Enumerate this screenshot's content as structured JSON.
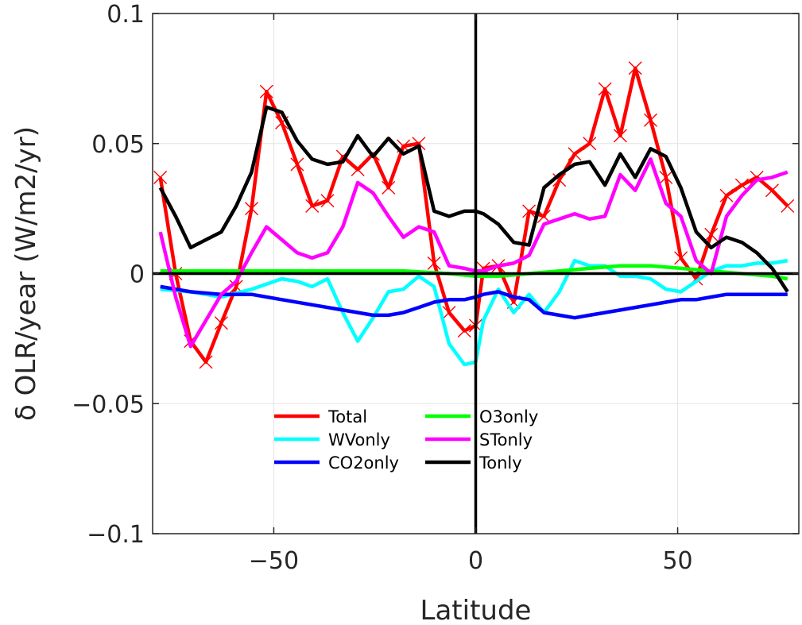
{
  "chart_data": {
    "type": "line",
    "title": "",
    "xlabel": "Latitude",
    "ylabel": "δ OLR/year (W/m2/yr)",
    "xlim": [
      -80,
      80
    ],
    "ylim": [
      -0.1,
      0.1
    ],
    "xticks": [
      -50,
      0,
      50
    ],
    "xtick_labels": [
      "−50",
      "0",
      "50"
    ],
    "yticks": [
      -0.1,
      -0.05,
      0,
      0.05,
      0.1
    ],
    "ytick_labels": [
      "−0.1",
      "−0.05",
      "0",
      "0.05",
      "0.1"
    ],
    "grid": true,
    "zero_lines": true,
    "legend_position": "lower-center",
    "series": [
      {
        "name": "Total",
        "color": "#ff0000",
        "marker": "x",
        "x": [
          -78.1,
          -74.3,
          -70.6,
          -66.8,
          -63.0,
          -59.3,
          -55.5,
          -51.8,
          -48.0,
          -44.2,
          -40.5,
          -36.7,
          -32.9,
          -29.2,
          -25.4,
          -21.6,
          -17.9,
          -14.1,
          -10.3,
          -6.6,
          -2.8,
          0.0,
          1.9,
          5.6,
          9.4,
          13.2,
          16.9,
          20.7,
          24.5,
          28.2,
          32.0,
          35.8,
          39.5,
          43.3,
          47.1,
          50.8,
          54.6,
          58.3,
          62.1,
          65.9,
          69.6,
          73.4,
          77.2
        ],
        "y": [
          0.037,
          0.0,
          -0.026,
          -0.034,
          -0.019,
          -0.005,
          0.025,
          0.07,
          0.058,
          0.042,
          0.026,
          0.028,
          0.045,
          0.04,
          0.046,
          0.033,
          0.049,
          0.05,
          0.004,
          -0.015,
          -0.022,
          -0.02,
          0.002,
          0.003,
          -0.011,
          0.024,
          0.022,
          0.036,
          0.046,
          0.05,
          0.071,
          0.053,
          0.079,
          0.059,
          0.037,
          0.006,
          -0.002,
          0.015,
          0.03,
          0.034,
          0.037,
          0.032,
          0.026
        ]
      },
      {
        "name": "WVonly",
        "color": "#00ffff",
        "marker": "",
        "x": [
          -78.1,
          -70.6,
          -63.0,
          -55.5,
          -48.0,
          -44.2,
          -40.5,
          -36.7,
          -32.9,
          -29.2,
          -25.4,
          -21.6,
          -17.9,
          -14.1,
          -10.3,
          -6.6,
          -2.8,
          0.0,
          1.9,
          5.6,
          9.4,
          13.2,
          16.9,
          20.7,
          24.5,
          28.2,
          32.0,
          35.8,
          39.5,
          43.3,
          47.1,
          50.8,
          54.6,
          58.3,
          62.1,
          65.9,
          69.6,
          73.4,
          77.2
        ],
        "y": [
          -0.006,
          -0.007,
          -0.009,
          -0.006,
          -0.002,
          -0.003,
          -0.005,
          -0.002,
          -0.015,
          -0.026,
          -0.017,
          -0.007,
          -0.006,
          -0.001,
          -0.005,
          -0.027,
          -0.035,
          -0.034,
          -0.018,
          -0.006,
          -0.015,
          -0.008,
          -0.015,
          -0.007,
          0.005,
          0.003,
          0.003,
          -0.001,
          -0.001,
          -0.002,
          -0.006,
          -0.007,
          -0.003,
          0.001,
          0.003,
          0.003,
          0.004,
          0.004,
          0.005
        ]
      },
      {
        "name": "CO2only",
        "color": "#0000ff",
        "marker": "",
        "x": [
          -78.1,
          -70.6,
          -63.0,
          -55.5,
          -48.0,
          -40.5,
          -32.9,
          -25.4,
          -21.6,
          -17.9,
          -14.1,
          -10.3,
          -6.6,
          -2.8,
          0.0,
          1.9,
          5.6,
          9.4,
          13.2,
          16.9,
          20.7,
          24.5,
          28.2,
          32.0,
          35.8,
          39.5,
          43.3,
          47.1,
          50.8,
          54.6,
          58.3,
          62.1,
          65.9,
          69.6,
          73.4,
          77.2
        ],
        "y": [
          -0.005,
          -0.007,
          -0.008,
          -0.008,
          -0.01,
          -0.012,
          -0.014,
          -0.016,
          -0.016,
          -0.015,
          -0.013,
          -0.011,
          -0.01,
          -0.01,
          -0.009,
          -0.008,
          -0.007,
          -0.009,
          -0.01,
          -0.015,
          -0.016,
          -0.017,
          -0.016,
          -0.015,
          -0.014,
          -0.013,
          -0.012,
          -0.011,
          -0.01,
          -0.01,
          -0.009,
          -0.008,
          -0.008,
          -0.008,
          -0.008,
          -0.008
        ]
      },
      {
        "name": "O3only",
        "color": "#00ff00",
        "marker": "",
        "x": [
          -78.1,
          -63.0,
          -48.0,
          -32.9,
          -17.9,
          -6.6,
          0.0,
          5.6,
          13.2,
          20.7,
          28.2,
          35.8,
          43.3,
          50.8,
          58.3,
          65.9,
          73.4,
          77.2
        ],
        "y": [
          0.001,
          0.001,
          0.001,
          0.001,
          0.001,
          0.0,
          -0.001,
          -0.001,
          0.0,
          0.001,
          0.002,
          0.003,
          0.003,
          0.002,
          0.001,
          0.0,
          -0.001,
          -0.002
        ]
      },
      {
        "name": "STonly",
        "color": "#ff00ff",
        "marker": "",
        "x": [
          -78.1,
          -74.3,
          -70.6,
          -66.8,
          -63.0,
          -59.3,
          -55.5,
          -51.8,
          -48.0,
          -44.2,
          -40.5,
          -36.7,
          -32.9,
          -29.2,
          -25.4,
          -21.6,
          -17.9,
          -14.1,
          -10.3,
          -6.6,
          -2.8,
          0.0,
          1.9,
          5.6,
          9.4,
          13.2,
          16.9,
          20.7,
          24.5,
          28.2,
          32.0,
          35.8,
          39.5,
          43.3,
          47.1,
          50.8,
          54.6,
          58.3,
          62.1,
          65.9,
          69.6,
          73.4,
          77.2
        ],
        "y": [
          0.016,
          -0.009,
          -0.028,
          -0.018,
          -0.008,
          -0.003,
          0.008,
          0.018,
          0.013,
          0.008,
          0.006,
          0.008,
          0.018,
          0.035,
          0.031,
          0.022,
          0.014,
          0.018,
          0.016,
          0.003,
          0.002,
          0.001,
          0.001,
          0.003,
          0.004,
          0.007,
          0.019,
          0.021,
          0.023,
          0.021,
          0.022,
          0.038,
          0.032,
          0.044,
          0.027,
          0.022,
          0.005,
          0.0,
          0.022,
          0.03,
          0.036,
          0.037,
          0.039
        ]
      },
      {
        "name": "Tonly",
        "color": "#000000",
        "marker": "",
        "x": [
          -78.1,
          -74.3,
          -70.6,
          -66.8,
          -63.0,
          -59.3,
          -55.5,
          -51.8,
          -48.0,
          -44.2,
          -40.5,
          -36.7,
          -32.9,
          -29.2,
          -25.4,
          -21.6,
          -17.9,
          -14.1,
          -10.3,
          -6.6,
          -2.8,
          0.0,
          1.9,
          5.6,
          9.4,
          13.2,
          16.9,
          20.7,
          24.5,
          28.2,
          32.0,
          35.8,
          39.5,
          43.3,
          47.1,
          50.8,
          54.6,
          58.3,
          62.1,
          65.9,
          69.6,
          73.4,
          77.2
        ],
        "y": [
          0.033,
          0.022,
          0.01,
          0.013,
          0.016,
          0.026,
          0.039,
          0.064,
          0.062,
          0.051,
          0.044,
          0.042,
          0.043,
          0.053,
          0.045,
          0.052,
          0.046,
          0.049,
          0.024,
          0.022,
          0.024,
          0.024,
          0.023,
          0.019,
          0.012,
          0.011,
          0.033,
          0.038,
          0.042,
          0.043,
          0.034,
          0.046,
          0.037,
          0.048,
          0.045,
          0.033,
          0.016,
          0.01,
          0.014,
          0.012,
          0.008,
          0.002,
          -0.007
        ]
      }
    ]
  }
}
